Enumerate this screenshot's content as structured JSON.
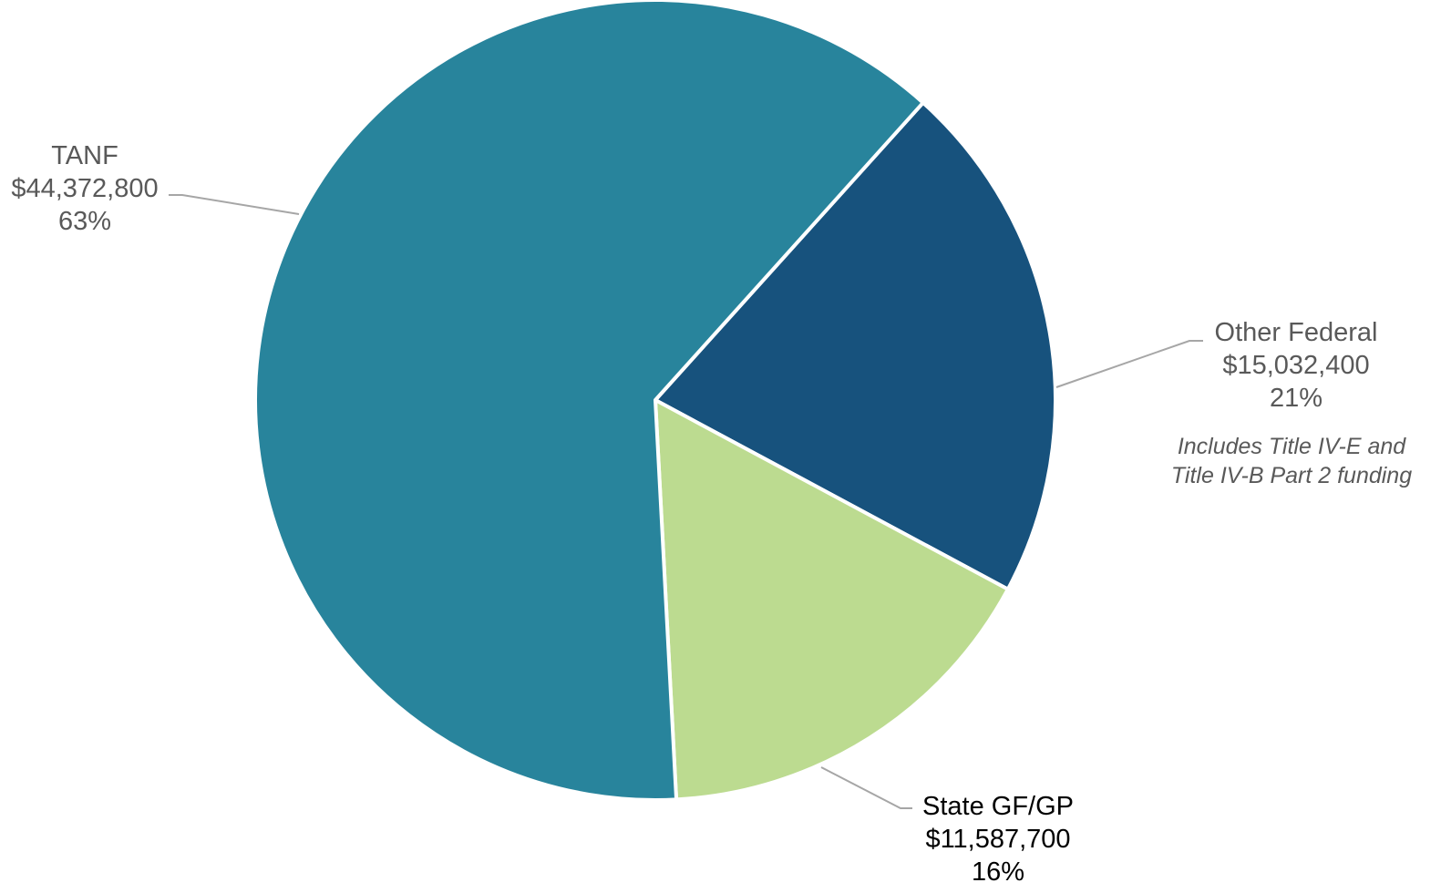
{
  "chart_data": {
    "type": "pie",
    "start_angle_deg": -48,
    "direction": "clockwise",
    "slices": [
      {
        "name": "Other Federal",
        "value": 15032400,
        "value_label": "$15,032,400",
        "percent_label": "21%",
        "note_lines": [
          "Includes Title IV-E and",
          "Title IV-B Part 2 funding"
        ],
        "color": "#17527d",
        "label_color": "#595959"
      },
      {
        "name": "State GF/GP",
        "value": 11587700,
        "value_label": "$11,587,700",
        "percent_label": "16%",
        "color": "#bcdb90",
        "label_color": "#000000"
      },
      {
        "name": "TANF",
        "value": 44372800,
        "value_label": "$44,372,800",
        "percent_label": "63%",
        "color": "#28849c",
        "label_color": "#595959"
      }
    ],
    "leader_line_color": "#a6a6a6",
    "legend": "none"
  }
}
